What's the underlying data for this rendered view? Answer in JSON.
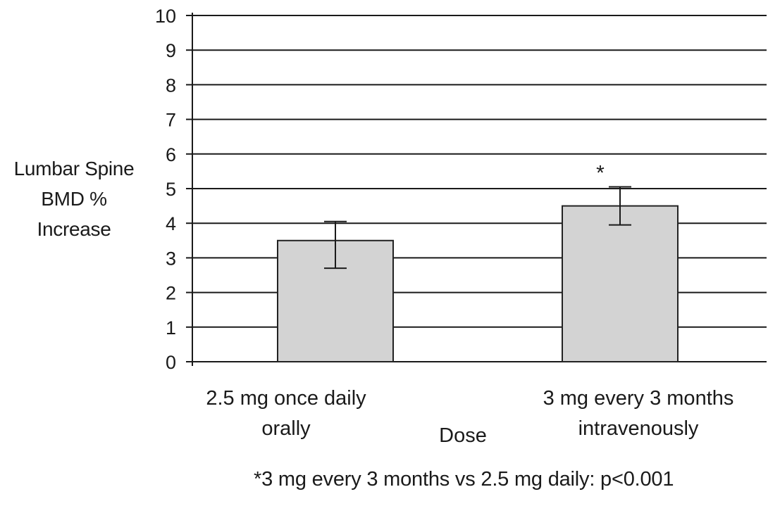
{
  "chart_data": {
    "type": "bar",
    "categories": [
      [
        "2.5 mg once daily",
        "orally"
      ],
      [
        "3 mg every 3 months",
        "intravenously"
      ]
    ],
    "values": [
      3.5,
      4.5
    ],
    "error_low": [
      2.7,
      3.95
    ],
    "error_high": [
      4.05,
      5.05
    ],
    "significance_markers": [
      "",
      "*"
    ],
    "xlabel": "Dose",
    "ylabel_lines": [
      "Lumbar Spine",
      "BMD %",
      "Increase"
    ],
    "ylim": [
      0,
      10
    ],
    "yticks": [
      "0",
      "1",
      "2",
      "3",
      "4",
      "5",
      "6",
      "7",
      "8",
      "9",
      "10"
    ],
    "grid": true,
    "bar_color": "#d3d3d3",
    "bar_edge_color": "#222222",
    "grid_color": "#1a1a1a",
    "footnote": "*3 mg every 3 months vs 2.5 mg daily: p<0.001"
  }
}
